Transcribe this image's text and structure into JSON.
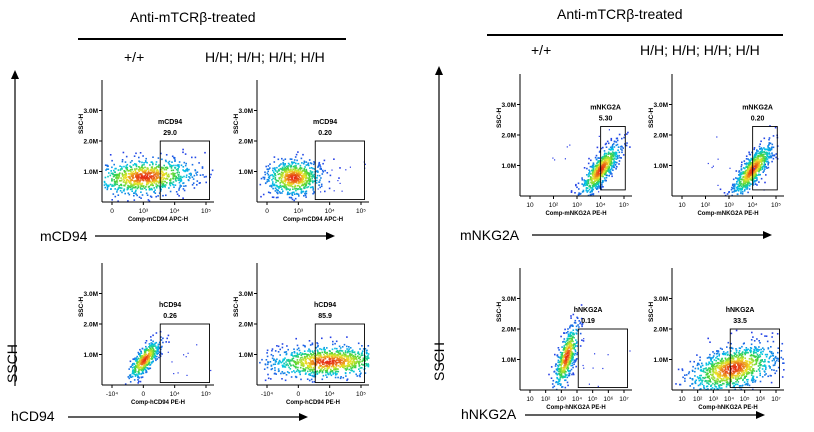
{
  "left": {
    "title": "Anti-mTCRβ-treated",
    "genotypes": [
      "+/+",
      "H/H; H/H; H/H; H/H"
    ],
    "y_axis_label": "SSCH",
    "rows": [
      {
        "marker": "mCD94",
        "panels": [
          {
            "gate_name": "mCD94",
            "gate_value": "29.0",
            "xlabel": "Comp-mCD94 APC-H"
          },
          {
            "gate_name": "mCD94",
            "gate_value": "0.20",
            "xlabel": "Comp-mCD94 APC-H"
          }
        ],
        "yticks": [
          "3.0M",
          "2.0M",
          "1.0M"
        ],
        "xticks": [
          "0",
          "10³",
          "10⁴",
          "10⁵"
        ]
      },
      {
        "marker": "hCD94",
        "panels": [
          {
            "gate_name": "hCD94",
            "gate_value": "0.26",
            "xlabel": "Comp-hCD94 PE-H"
          },
          {
            "gate_name": "hCD94",
            "gate_value": "85.9",
            "xlabel": "Comp-hCD94 PE-H"
          }
        ],
        "yticks": [
          "3.0M",
          "2.0M",
          "1.0M"
        ],
        "xticks": [
          "-10⁴",
          "0",
          "10⁴",
          "10⁵"
        ]
      }
    ]
  },
  "right": {
    "title": "Anti-mTCRβ-treated",
    "genotypes": [
      "+/+",
      "H/H; H/H; H/H; H/H"
    ],
    "y_axis_label": "SSCH",
    "rows": [
      {
        "marker": "mNKG2A",
        "panels": [
          {
            "gate_name": "mNKG2A",
            "gate_value": "5.30",
            "xlabel": "Comp-mNKG2A PE-H"
          },
          {
            "gate_name": "mNKG2A",
            "gate_value": "0.20",
            "xlabel": "Comp-mNKG2A PE-H"
          }
        ],
        "yticks": [
          "3.0M",
          "2.0M",
          "1.0M"
        ],
        "xticks": [
          "10",
          "10²",
          "10³",
          "10⁴",
          "10⁵"
        ]
      },
      {
        "marker": "hNKG2A",
        "panels": [
          {
            "gate_name": "hNKG2A",
            "gate_value": "0.19",
            "xlabel": "Comp-hNKG2A PE-H"
          },
          {
            "gate_name": "hNKG2A",
            "gate_value": "33.5",
            "xlabel": "Comp-hNKG2A PE-H"
          }
        ],
        "yticks": [
          "3.0M",
          "2.0M",
          "1.0M"
        ],
        "xticks": [
          "10",
          "10²",
          "10³",
          "10⁴",
          "10⁵",
          "10⁶",
          "10⁷"
        ]
      }
    ]
  },
  "panel_axis_ylabel": "SSC-H",
  "colors": {
    "text": "#000000",
    "axis": "#000000",
    "gate": "#000000"
  }
}
